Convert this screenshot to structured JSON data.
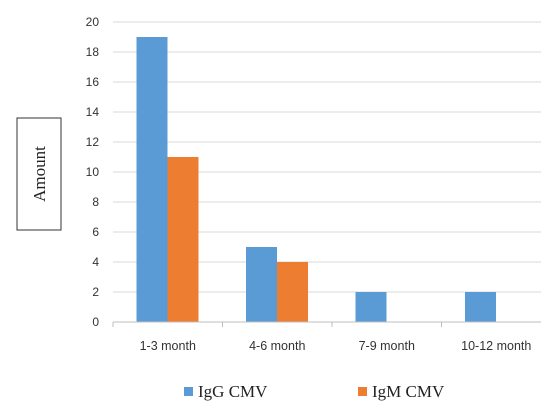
{
  "chart_data": {
    "type": "bar",
    "ylabel": "Amount",
    "xlabel": "",
    "title": "",
    "categories": [
      "1-3 month",
      "4-6 month",
      "7-9 month",
      "10-12 month"
    ],
    "series": [
      {
        "name": "IgG CMV",
        "color": "#5b9bd5",
        "values": [
          19,
          5,
          2,
          2
        ]
      },
      {
        "name": "IgM CMV",
        "color": "#ed7d31",
        "values": [
          11,
          4,
          0,
          0
        ]
      }
    ],
    "ylim": [
      0,
      20
    ],
    "yticks": [
      0,
      2,
      4,
      6,
      8,
      10,
      12,
      14,
      16,
      18,
      20
    ],
    "grid": true,
    "legend": "bottom"
  }
}
